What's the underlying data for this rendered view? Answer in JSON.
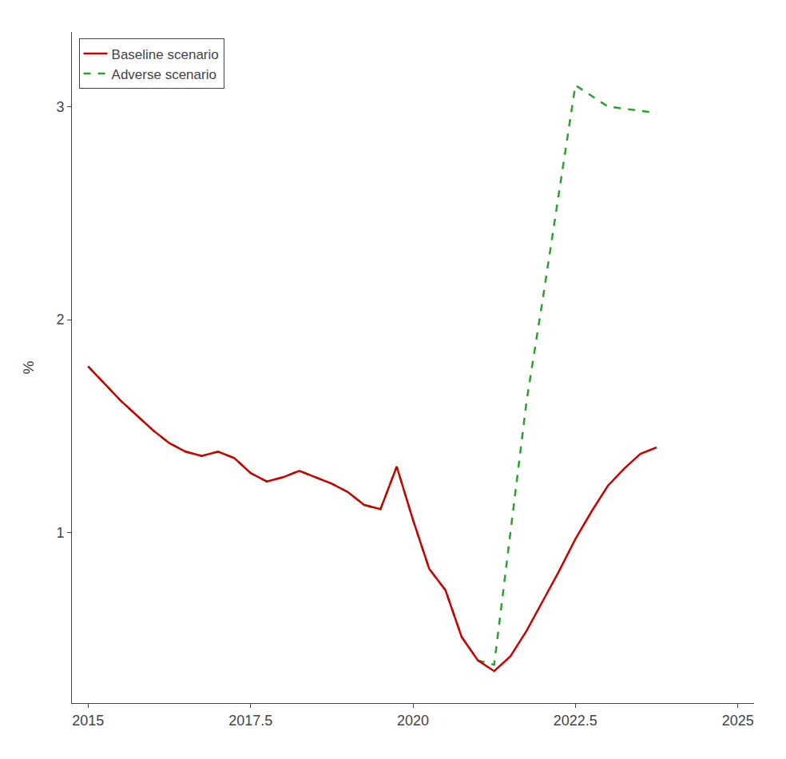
{
  "chart_data": {
    "type": "line",
    "ylabel": "%",
    "series": [
      {
        "name": "Adverse scenario",
        "color": "#2ca02c",
        "line_style": "dashed",
        "x": [
          2015.0,
          2015.25,
          2015.5,
          2015.75,
          2016.0,
          2016.25,
          2016.5,
          2016.75,
          2017.0,
          2017.25,
          2017.5,
          2017.75,
          2018.0,
          2018.25,
          2018.5,
          2018.75,
          2019.0,
          2019.25,
          2019.5,
          2019.75,
          2020.0,
          2020.25,
          2020.5,
          2020.75,
          2021.0,
          2021.25,
          2021.5,
          2021.75,
          2022.0,
          2022.25,
          2022.5,
          2022.75,
          2023.0,
          2023.25,
          2023.5,
          2023.75
        ],
        "values": [
          1.78,
          1.7,
          1.62,
          1.55,
          1.48,
          1.42,
          1.38,
          1.36,
          1.38,
          1.35,
          1.28,
          1.24,
          1.26,
          1.29,
          1.26,
          1.23,
          1.19,
          1.13,
          1.11,
          1.31,
          1.06,
          0.83,
          0.73,
          0.51,
          0.4,
          0.38,
          1.0,
          1.62,
          2.1,
          2.6,
          3.1,
          3.05,
          3.0,
          2.99,
          2.98,
          2.97
        ]
      },
      {
        "name": "Baseline scenario",
        "color": "#cc0000",
        "line_style": "solid",
        "x": [
          2015.0,
          2015.25,
          2015.5,
          2015.75,
          2016.0,
          2016.25,
          2016.5,
          2016.75,
          2017.0,
          2017.25,
          2017.5,
          2017.75,
          2018.0,
          2018.25,
          2018.5,
          2018.75,
          2019.0,
          2019.25,
          2019.5,
          2019.75,
          2020.0,
          2020.25,
          2020.5,
          2020.75,
          2021.0,
          2021.25,
          2021.5,
          2021.75,
          2022.0,
          2022.25,
          2022.5,
          2022.75,
          2023.0,
          2023.25,
          2023.5,
          2023.75
        ],
        "values": [
          1.78,
          1.7,
          1.62,
          1.55,
          1.48,
          1.42,
          1.38,
          1.36,
          1.38,
          1.35,
          1.28,
          1.24,
          1.26,
          1.29,
          1.26,
          1.23,
          1.19,
          1.13,
          1.11,
          1.31,
          1.06,
          0.83,
          0.73,
          0.51,
          0.4,
          0.35,
          0.42,
          0.54,
          0.68,
          0.82,
          0.97,
          1.1,
          1.22,
          1.3,
          1.37,
          1.4
        ]
      }
    ],
    "xlim": [
      2014.75,
      2025.25
    ],
    "ylim": [
      0.2,
      3.35
    ],
    "xticks": [
      2015,
      2017.5,
      2020,
      2022.5,
      2025
    ],
    "yticks": [
      1,
      2,
      3
    ],
    "grid": false,
    "legend": "upper left"
  }
}
